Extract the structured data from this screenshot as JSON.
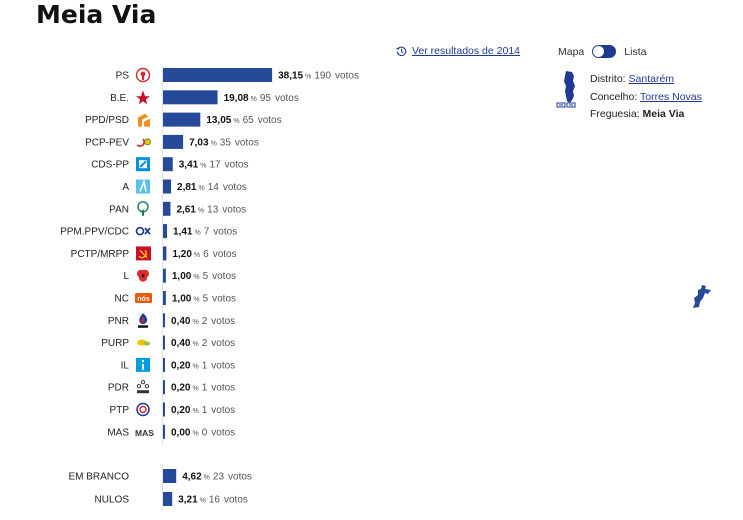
{
  "page": {
    "title": "Meia Via",
    "history_link": "Ver resultados de 2014",
    "toggle": {
      "left": "Mapa",
      "right": "Lista",
      "selected": "Mapa"
    },
    "location": {
      "distrito_label": "Distrito:",
      "distrito": "Santarém",
      "concelho_label": "Concelho:",
      "concelho": "Torres Novas",
      "freguesia_label": "Freguesia:",
      "freguesia": "Meia Via"
    },
    "accent_color": "#1f3a93"
  },
  "chart_data": {
    "type": "bar",
    "orientation": "horizontal",
    "pct_unit": "%",
    "votes_suffix": "votos",
    "xlim": [
      0,
      100
    ],
    "bar_color": "#27499a",
    "parties": [
      {
        "name": "PS",
        "pct": 38.15,
        "pct_text": "38,15",
        "votes": 190,
        "logo": "ps-rose-fist-icon"
      },
      {
        "name": "B.E.",
        "pct": 19.08,
        "pct_text": "19,08",
        "votes": 95,
        "logo": "be-star-icon"
      },
      {
        "name": "PPD/PSD",
        "pct": 13.05,
        "pct_text": "13,05",
        "votes": 65,
        "logo": "psd-arrows-icon"
      },
      {
        "name": "PCP-PEV",
        "pct": 7.03,
        "pct_text": "7,03",
        "votes": 35,
        "logo": "cdu-hammer-sickle-sun-icon"
      },
      {
        "name": "CDS-PP",
        "pct": 3.41,
        "pct_text": "3,41",
        "votes": 17,
        "logo": "cds-square-icon"
      },
      {
        "name": "A",
        "pct": 2.81,
        "pct_text": "2,81",
        "votes": 14,
        "logo": "alianca-a-icon"
      },
      {
        "name": "PAN",
        "pct": 2.61,
        "pct_text": "2,61",
        "votes": 13,
        "logo": "pan-tree-icon"
      },
      {
        "name": "PPM.PPV/CDC",
        "pct": 1.41,
        "pct_text": "1,41",
        "votes": 7,
        "logo": "ppm-coalition-icon"
      },
      {
        "name": "PCTP/MRPP",
        "pct": 1.2,
        "pct_text": "1,20",
        "votes": 6,
        "logo": "pctp-hammer-sickle-icon"
      },
      {
        "name": "L",
        "pct": 1.0,
        "pct_text": "1,00",
        "votes": 5,
        "logo": "livre-poppy-icon"
      },
      {
        "name": "NC",
        "pct": 1.0,
        "pct_text": "1,00",
        "votes": 5,
        "logo": "nc-nos-cidadaos-icon"
      },
      {
        "name": "PNR",
        "pct": 0.4,
        "pct_text": "0,40",
        "votes": 2,
        "logo": "pnr-flame-icon"
      },
      {
        "name": "PURP",
        "pct": 0.4,
        "pct_text": "0,40",
        "votes": 2,
        "logo": "purp-leaf-icon"
      },
      {
        "name": "IL",
        "pct": 0.2,
        "pct_text": "0,20",
        "votes": 1,
        "logo": "il-info-icon"
      },
      {
        "name": "PDR",
        "pct": 0.2,
        "pct_text": "0,20",
        "votes": 1,
        "logo": "pdr-stars-icon"
      },
      {
        "name": "PTP",
        "pct": 0.2,
        "pct_text": "0,20",
        "votes": 1,
        "logo": "ptp-swirl-icon"
      },
      {
        "name": "MAS",
        "pct": 0.0,
        "pct_text": "0,00",
        "votes": 0,
        "logo": "mas-text-icon"
      }
    ],
    "others": [
      {
        "name": "EM BRANCO",
        "pct": 4.62,
        "pct_text": "4,62",
        "votes": 23
      },
      {
        "name": "NULOS",
        "pct": 3.21,
        "pct_text": "3,21",
        "votes": 16
      }
    ]
  }
}
